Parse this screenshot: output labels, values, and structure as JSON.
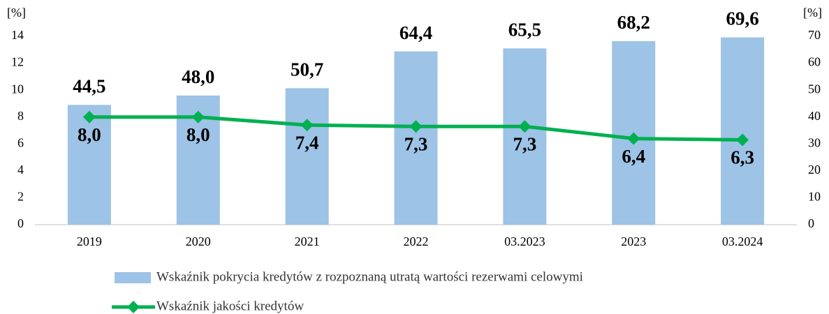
{
  "chart_data": {
    "type": "bar",
    "categories": [
      "2019",
      "2020",
      "2021",
      "2022",
      "03.2023",
      "2023",
      "03.2024"
    ],
    "y_label": "[%]",
    "y2_label": "[%]",
    "ylim": [
      0,
      14
    ],
    "yticks": [
      0,
      2,
      4,
      6,
      8,
      10,
      12,
      14
    ],
    "y2lim": [
      0,
      70
    ],
    "y2ticks": [
      0,
      10,
      20,
      30,
      40,
      50,
      60,
      70
    ],
    "series": [
      {
        "name": "Wskaźnik pokrycia kredytów z rozpoznaną utratą wartości rezerwami celowymi",
        "type": "bar",
        "axis": "y2",
        "color": "#9dc3e6",
        "values": [
          44.5,
          48.0,
          50.7,
          64.4,
          65.5,
          68.2,
          69.6
        ],
        "value_labels": [
          "44,5",
          "48,0",
          "50,7",
          "64,4",
          "65,5",
          "68,2",
          "69,6"
        ]
      },
      {
        "name": "Wskaźnik jakości kredytów",
        "type": "line",
        "axis": "y",
        "color": "#00b050",
        "values": [
          8.0,
          8.0,
          7.4,
          7.3,
          7.3,
          6.4,
          6.3
        ],
        "value_labels": [
          "8,0",
          "8,0",
          "7,4",
          "7,3",
          "7,3",
          "6,4",
          "6,3"
        ]
      }
    ]
  }
}
